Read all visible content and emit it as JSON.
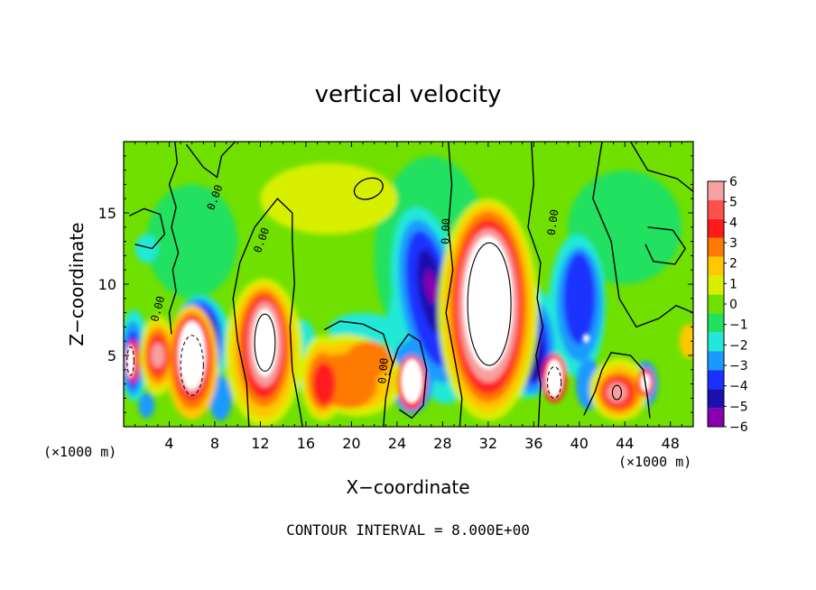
{
  "chart_data": {
    "type": "heatmap",
    "title": "vertical velocity",
    "xlabel": "X−coordinate",
    "ylabel": "Z−coordinate",
    "x_unit": "(×1000 m)",
    "z_unit": "(×1000 m)",
    "xlim": [
      0,
      50
    ],
    "ylim": [
      0,
      20
    ],
    "x_ticks": [
      "4",
      "8",
      "12",
      "16",
      "20",
      "24",
      "28",
      "32",
      "36",
      "40",
      "44",
      "48"
    ],
    "x_tick_values": [
      4,
      8,
      12,
      16,
      20,
      24,
      28,
      32,
      36,
      40,
      44,
      48
    ],
    "y_ticks": [
      "5",
      "10",
      "15"
    ],
    "y_tick_values": [
      5,
      10,
      15
    ],
    "colorbar": {
      "labels": [
        "6",
        "5",
        "4",
        "3",
        "2",
        "1",
        "0",
        "−1",
        "−2",
        "−3",
        "−4",
        "−5",
        "−6"
      ],
      "values": [
        6,
        5,
        4,
        3,
        2,
        1,
        0,
        -1,
        -2,
        -3,
        -4,
        -5,
        -6
      ],
      "colors": [
        "#f7a0a0",
        "#ff5050",
        "#ff1a1a",
        "#ff7a00",
        "#ffc800",
        "#d8f000",
        "#70e000",
        "#22e060",
        "#22e8d8",
        "#1a9aff",
        "#1a30ff",
        "#1a10b0",
        "#8a00b0"
      ]
    },
    "contour_labels": [
      "0.00",
      "0.00",
      "0.00",
      "0.00",
      "0.00",
      "0.00"
    ],
    "contour_interval_text": "CONTOUR INTERVAL = 8.000E+00",
    "features": [
      {
        "kind": "updraft",
        "x": 1.0,
        "z": 4.8,
        "w": 6
      },
      {
        "kind": "updraft",
        "x": 3.0,
        "z": 5.2,
        "w": 6
      },
      {
        "kind": "updraft",
        "x": 6.0,
        "z": 5.0,
        "w": 6
      },
      {
        "kind": "downdraft",
        "x": 6.8,
        "z": 6.5,
        "w": -5
      },
      {
        "kind": "updraft",
        "x": 12.4,
        "z": 5.8,
        "w": 6
      },
      {
        "kind": "updraft",
        "x": 17.5,
        "z": 3.2,
        "w": 4
      },
      {
        "kind": "updraft",
        "x": 21.0,
        "z": 3.8,
        "w": 3
      },
      {
        "kind": "updraft",
        "x": 25.3,
        "z": 3.2,
        "w": 6
      },
      {
        "kind": "downdraft",
        "x": 26.8,
        "z": 8.5,
        "w": -5
      },
      {
        "kind": "updraft",
        "x": 32.0,
        "z": 8.0,
        "w": 6
      },
      {
        "kind": "downdraft",
        "x": 36.0,
        "z": 5.5,
        "w": -4
      },
      {
        "kind": "updraft",
        "x": 37.8,
        "z": 3.3,
        "w": 6
      },
      {
        "kind": "downdraft",
        "x": 40.0,
        "z": 8.5,
        "w": -4
      },
      {
        "kind": "updraft",
        "x": 43.2,
        "z": 2.5,
        "w": 5
      },
      {
        "kind": "updraft",
        "x": 45.8,
        "z": 3.0,
        "w": 6
      },
      {
        "kind": "updraft",
        "x": 49.5,
        "z": 5.8,
        "w": 3
      }
    ]
  }
}
